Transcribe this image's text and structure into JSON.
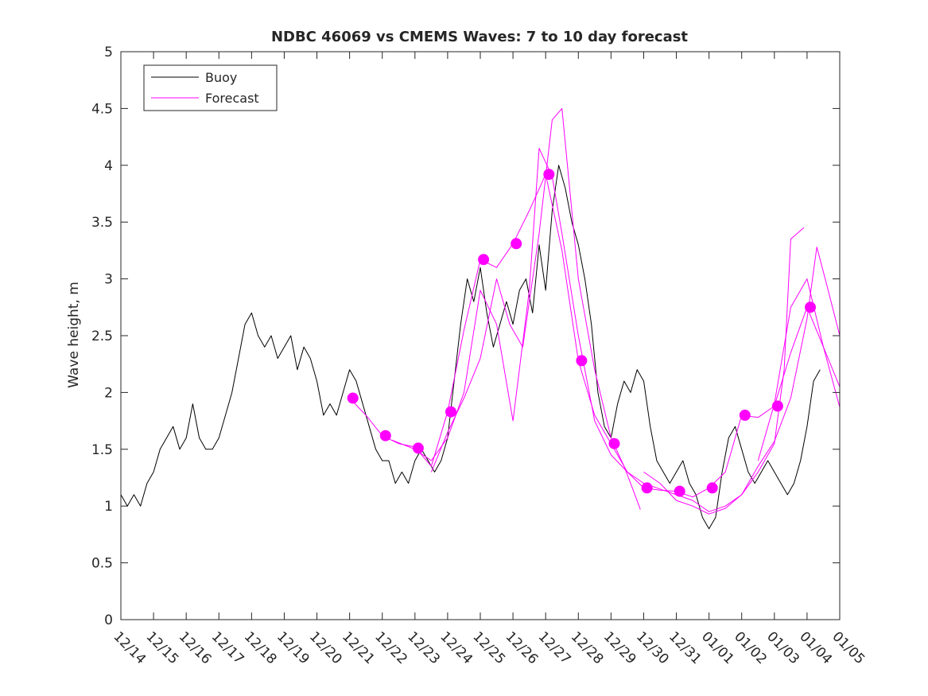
{
  "chart_data": {
    "type": "line",
    "title": "NDBC 46069 vs CMEMS Waves: 7 to 10 day forecast",
    "xlabel": "",
    "ylabel": "Wave height, m",
    "xlim": [
      0,
      22
    ],
    "ylim": [
      0,
      5
    ],
    "yticks": [
      0,
      0.5,
      1,
      1.5,
      2,
      2.5,
      3,
      3.5,
      4,
      4.5,
      5
    ],
    "ytick_labels": [
      "0",
      "0.5",
      "1",
      "1.5",
      "2",
      "2.5",
      "3",
      "3.5",
      "4",
      "4.5",
      "5"
    ],
    "xtick_labels": [
      "12/14",
      "12/15",
      "12/16",
      "12/17",
      "12/18",
      "12/19",
      "12/20",
      "12/21",
      "12/22",
      "12/23",
      "12/24",
      "12/25",
      "12/26",
      "12/27",
      "12/28",
      "12/29",
      "12/30",
      "12/31",
      "01/01",
      "01/02",
      "01/03",
      "01/04",
      "01/05"
    ],
    "grid": false,
    "legend_position": "top-left",
    "colors": {
      "buoy": "#000000",
      "forecast": "#ff00ff",
      "axis": "#262626"
    },
    "series": [
      {
        "name": "Buoy",
        "color": "#000000",
        "x": [
          0,
          0.2,
          0.4,
          0.6,
          0.8,
          1.0,
          1.2,
          1.4,
          1.6,
          1.8,
          2.0,
          2.2,
          2.4,
          2.6,
          2.8,
          3.0,
          3.2,
          3.4,
          3.6,
          3.8,
          4.0,
          4.2,
          4.4,
          4.6,
          4.8,
          5.0,
          5.2,
          5.4,
          5.6,
          5.8,
          6.0,
          6.2,
          6.4,
          6.6,
          6.8,
          7.0,
          7.2,
          7.4,
          7.6,
          7.8,
          8.0,
          8.2,
          8.4,
          8.6,
          8.8,
          9.0,
          9.2,
          9.4,
          9.6,
          9.8,
          10.0,
          10.2,
          10.4,
          10.6,
          10.8,
          11.0,
          11.2,
          11.4,
          11.6,
          11.8,
          12.0,
          12.2,
          12.4,
          12.6,
          12.8,
          13.0,
          13.2,
          13.4,
          13.6,
          13.8,
          14.0,
          14.2,
          14.4,
          14.6,
          14.8,
          15.0,
          15.2,
          15.4,
          15.6,
          15.8,
          16.0,
          16.2,
          16.4,
          16.6,
          16.8,
          17.0,
          17.2,
          17.4,
          17.6,
          17.8,
          18.0,
          18.2,
          18.4,
          18.6,
          18.8,
          19.0,
          19.2,
          19.4,
          19.6,
          19.8,
          20.0,
          20.2,
          20.4,
          20.6,
          20.8,
          21.0,
          21.2,
          21.4
        ],
        "y": [
          1.1,
          1.0,
          1.1,
          1.0,
          1.2,
          1.3,
          1.5,
          1.6,
          1.7,
          1.5,
          1.6,
          1.9,
          1.6,
          1.5,
          1.5,
          1.6,
          1.8,
          2.0,
          2.3,
          2.6,
          2.7,
          2.5,
          2.4,
          2.5,
          2.3,
          2.4,
          2.5,
          2.2,
          2.4,
          2.3,
          2.1,
          1.8,
          1.9,
          1.8,
          2.0,
          2.2,
          2.1,
          1.9,
          1.7,
          1.5,
          1.4,
          1.4,
          1.2,
          1.3,
          1.2,
          1.4,
          1.5,
          1.4,
          1.3,
          1.4,
          1.6,
          2.1,
          2.6,
          3.0,
          2.8,
          3.1,
          2.7,
          2.4,
          2.6,
          2.8,
          2.6,
          2.9,
          3.0,
          2.7,
          3.3,
          2.9,
          3.6,
          4.0,
          3.8,
          3.5,
          3.3,
          3.0,
          2.6,
          2.0,
          1.7,
          1.6,
          1.9,
          2.1,
          2.0,
          2.2,
          2.1,
          1.7,
          1.4,
          1.3,
          1.2,
          1.3,
          1.4,
          1.2,
          1.1,
          0.9,
          0.8,
          0.9,
          1.3,
          1.6,
          1.7,
          1.5,
          1.3,
          1.2,
          1.3,
          1.4,
          1.3,
          1.2,
          1.1,
          1.2,
          1.4,
          1.7,
          2.1,
          2.2
        ]
      },
      {
        "name": "Forecast",
        "color": "#ff00ff",
        "x": [
          7,
          7.5,
          8,
          8.5,
          9,
          9.5,
          10,
          10.5,
          11,
          11.5,
          12,
          12.5,
          13,
          13.5,
          14,
          14.5,
          15,
          15.5,
          16,
          16.5,
          17,
          17.5,
          18,
          18.5,
          19,
          19.5,
          20,
          20.5,
          21,
          21.5,
          22
        ],
        "y": [
          1.95,
          1.8,
          1.62,
          1.55,
          1.52,
          1.35,
          1.83,
          2.55,
          3.17,
          3.1,
          3.31,
          3.6,
          3.92,
          3.25,
          2.28,
          1.8,
          1.55,
          1.3,
          1.16,
          1.14,
          1.13,
          1.08,
          1.16,
          1.3,
          1.8,
          1.78,
          1.88,
          2.35,
          2.75,
          2.4,
          1.87
        ]
      },
      {
        "name": "Forecast",
        "color": "#ff00ff",
        "x": [
          8.3,
          9,
          9.5,
          10,
          10.5,
          11,
          11.5,
          12,
          12.5,
          12.8,
          13.2,
          13.5,
          14,
          14.5,
          15,
          15.5,
          16,
          16.5,
          17,
          17.5,
          18,
          18.5,
          19,
          19.5,
          20,
          20.3,
          20.5,
          20.9
        ],
        "y": [
          1.58,
          1.5,
          1.4,
          1.6,
          2.0,
          2.9,
          2.6,
          1.75,
          2.9,
          4.15,
          3.9,
          3.4,
          2.5,
          1.75,
          1.45,
          1.3,
          1.2,
          1.15,
          1.1,
          1.05,
          0.95,
          1.0,
          1.1,
          1.3,
          1.55,
          2.2,
          3.35,
          3.45
        ]
      },
      {
        "name": "Forecast",
        "color": "#ff00ff",
        "x": [
          9.5,
          10,
          10.5,
          11,
          11.5,
          11.9,
          12.3,
          12.8,
          13.2,
          13.5,
          14,
          14.5,
          15,
          15.4,
          15.6,
          15.9
        ],
        "y": [
          1.3,
          1.65,
          1.95,
          2.3,
          3.0,
          2.6,
          2.4,
          3.4,
          4.4,
          4.5,
          3.0,
          2.2,
          1.6,
          1.35,
          1.2,
          0.97
        ]
      },
      {
        "name": "Forecast",
        "color": "#ff00ff",
        "x": [
          16,
          16.5,
          17,
          17.5,
          18,
          18.5,
          19,
          19.5,
          20,
          20.5,
          21,
          21.3,
          21.6,
          22
        ],
        "y": [
          1.3,
          1.2,
          1.05,
          1.0,
          0.93,
          0.98,
          1.1,
          1.35,
          1.57,
          1.95,
          2.65,
          3.28,
          2.95,
          2.5
        ]
      },
      {
        "name": "Forecast",
        "color": "#ff00ff",
        "x": [
          19.5,
          20,
          20.5,
          21,
          21.5,
          22
        ],
        "y": [
          1.4,
          1.9,
          2.75,
          3.0,
          2.4,
          2.05
        ]
      }
    ],
    "markers": {
      "x": [
        7.1,
        8.1,
        9.1,
        10.1,
        11.1,
        12.1,
        13.1,
        14.1,
        15.1,
        16.1,
        17.1,
        18.1,
        19.1,
        20.1,
        21.1
      ],
      "y": [
        1.95,
        1.62,
        1.51,
        1.83,
        3.17,
        3.31,
        3.92,
        2.28,
        1.55,
        1.16,
        1.13,
        1.16,
        1.8,
        1.88,
        2.75
      ]
    }
  }
}
